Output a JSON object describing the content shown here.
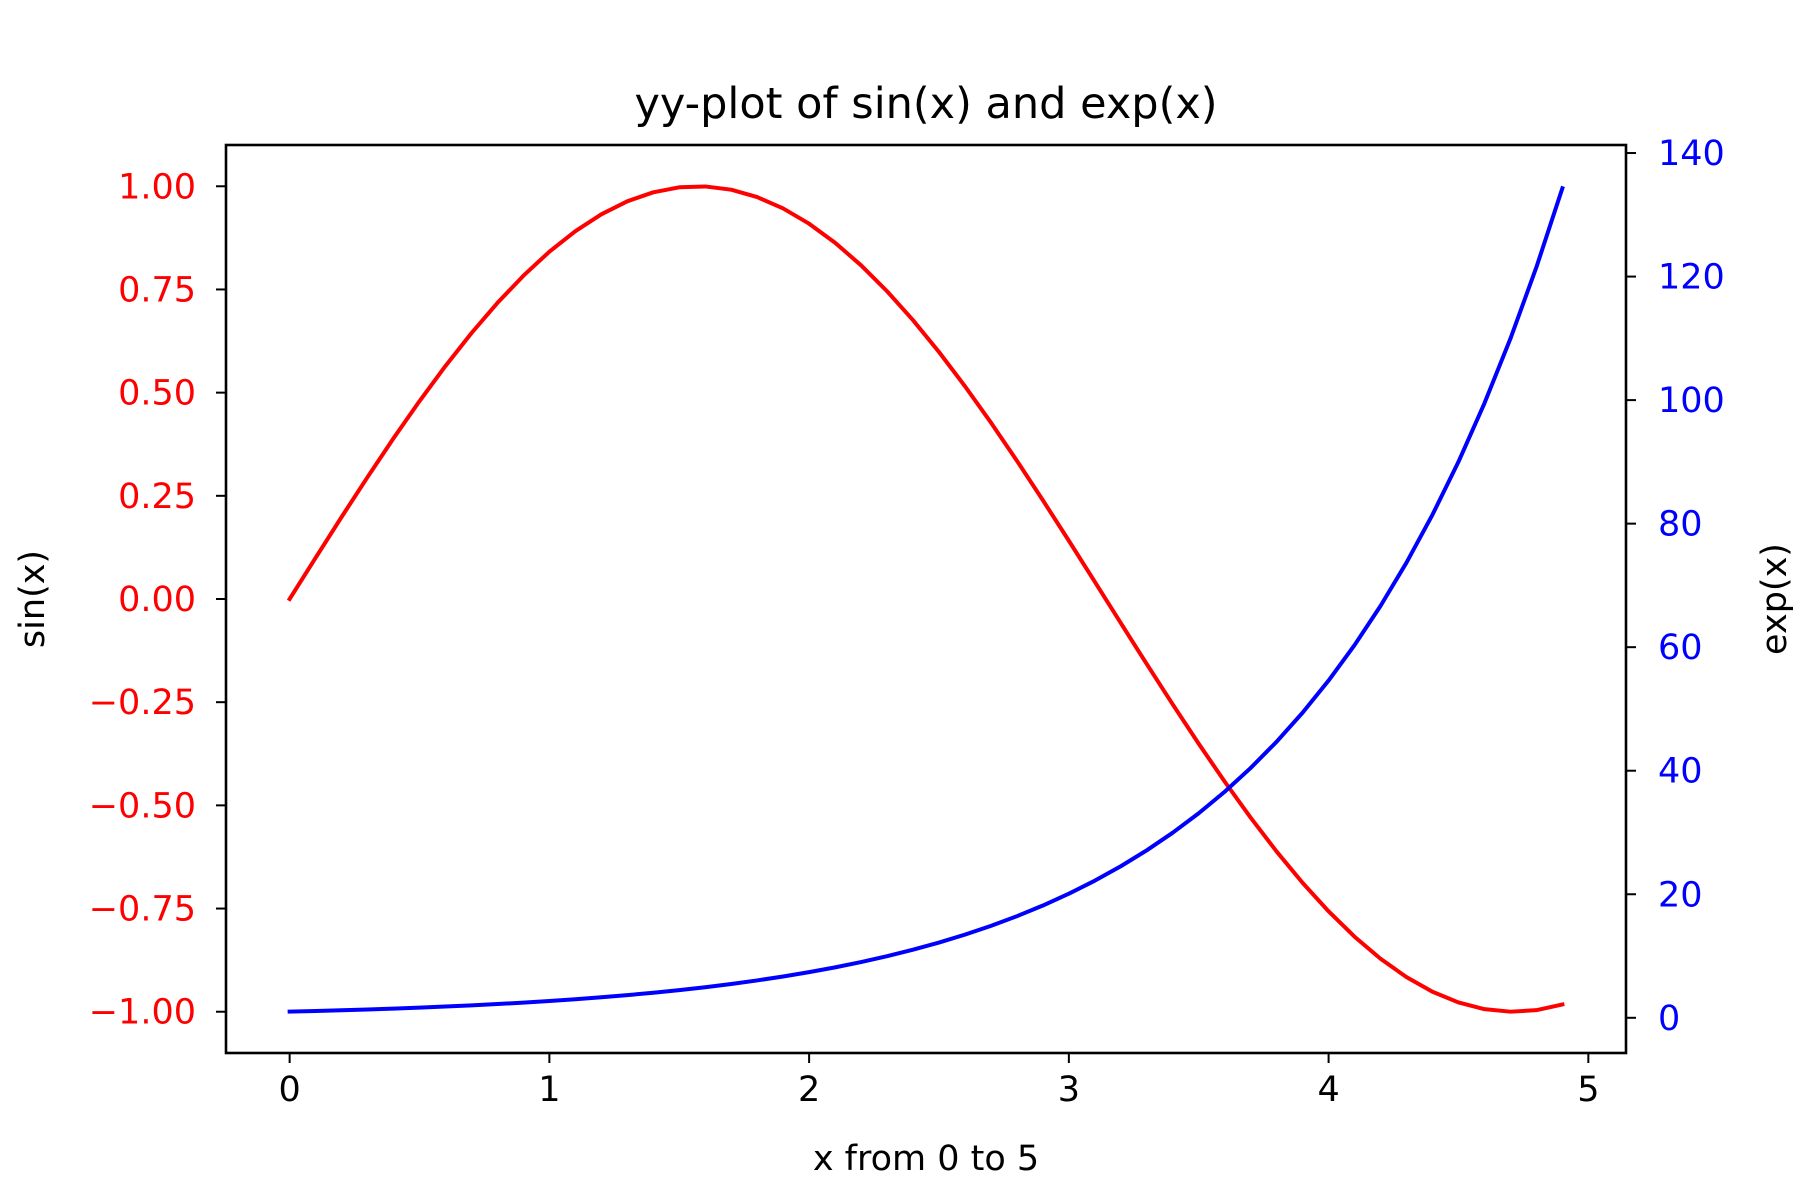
{
  "chart_data": {
    "type": "line",
    "title": "yy-plot of sin(x) and exp(x)",
    "xlabel": "x from 0 to 5",
    "x_range": [
      0,
      4.9
    ],
    "x_step": 0.1,
    "xlim": [
      -0.245,
      5.145
    ],
    "xticks": [
      0,
      1,
      2,
      3,
      4,
      5
    ],
    "xtick_labels": [
      "0",
      "1",
      "2",
      "3",
      "4",
      "5"
    ],
    "left_axis": {
      "label": "sin(x)",
      "color": "#ff0000",
      "ylim": [
        -1.1,
        1.1
      ],
      "ticks": [
        1.0,
        0.75,
        0.5,
        0.25,
        0.0,
        -0.25,
        -0.5,
        -0.75,
        -1.0
      ],
      "tick_labels": [
        "1.00",
        "0.75",
        "0.50",
        "0.25",
        "0.00",
        "−0.25",
        "−0.50",
        "−0.75",
        "−1.00"
      ]
    },
    "right_axis": {
      "label": "exp(x)",
      "color": "#0000ff",
      "ylim": [
        -5.7,
        141.3
      ],
      "ticks": [
        0,
        20,
        40,
        60,
        80,
        100,
        120,
        140
      ],
      "tick_labels": [
        "0",
        "20",
        "40",
        "60",
        "80",
        "100",
        "120",
        "140"
      ]
    },
    "series": [
      {
        "function": "sin",
        "axis": "left",
        "color": "#ff0000",
        "values": [
          0.0,
          0.0998,
          0.1987,
          0.2955,
          0.3894,
          0.4794,
          0.5646,
          0.6442,
          0.7174,
          0.7833,
          0.8415,
          0.8912,
          0.932,
          0.9636,
          0.9854,
          0.9975,
          0.9996,
          0.9917,
          0.9738,
          0.9463,
          0.9093,
          0.8632,
          0.8085,
          0.7457,
          0.6755,
          0.5985,
          0.5155,
          0.4274,
          0.335,
          0.2392,
          0.1411,
          0.0416,
          -0.0584,
          -0.1577,
          -0.2555,
          -0.3508,
          -0.4425,
          -0.5298,
          -0.6119,
          -0.6878,
          -0.7568,
          -0.8183,
          -0.8716,
          -0.9162,
          -0.9516,
          -0.9775,
          -0.9937,
          -0.9999,
          -0.9962,
          -0.9825
        ]
      },
      {
        "function": "exp",
        "axis": "right",
        "color": "#0000ff",
        "values": [
          1.0,
          1.105,
          1.221,
          1.35,
          1.492,
          1.649,
          1.822,
          2.014,
          2.226,
          2.46,
          2.718,
          3.004,
          3.32,
          3.669,
          4.055,
          4.482,
          4.953,
          5.474,
          6.05,
          6.686,
          7.389,
          8.166,
          9.025,
          9.974,
          11.023,
          12.182,
          13.464,
          14.88,
          16.445,
          18.174,
          20.086,
          22.198,
          24.533,
          27.113,
          29.964,
          33.115,
          36.598,
          40.447,
          44.701,
          49.402,
          54.598,
          60.34,
          66.686,
          73.7,
          81.451,
          90.017,
          99.484,
          109.947,
          121.51,
          134.29
        ]
      }
    ]
  }
}
